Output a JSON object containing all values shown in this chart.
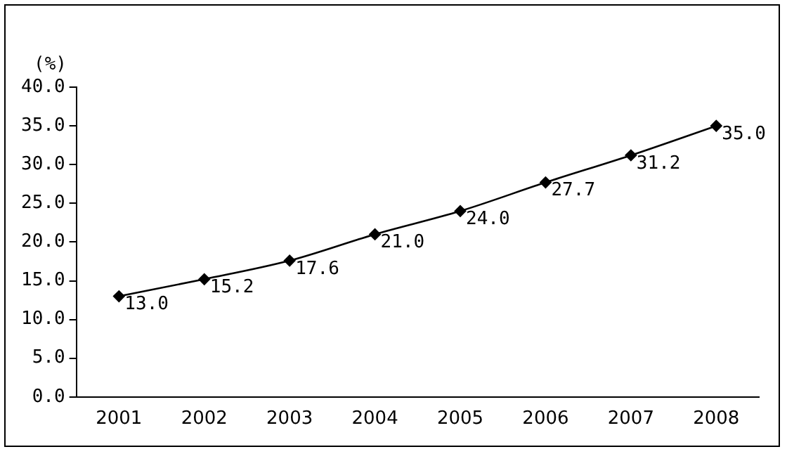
{
  "chart_data": {
    "type": "line",
    "ylabel": "(%)",
    "categories": [
      "2001",
      "2002",
      "2003",
      "2004",
      "2005",
      "2006",
      "2007",
      "2008"
    ],
    "series": [
      {
        "color": "#000000",
        "values": [
          13.0,
          15.2,
          17.6,
          21.0,
          24.0,
          27.7,
          31.2,
          35.0
        ],
        "value_labels": [
          "13.0",
          "15.2",
          "17.6",
          "21.0",
          "24.0",
          "27.7",
          "31.2",
          "35.0"
        ]
      }
    ],
    "ylim": [
      0,
      40
    ],
    "yticks": [
      {
        "value": 0,
        "label": "0.0"
      },
      {
        "value": 5,
        "label": "5.0"
      },
      {
        "value": 10,
        "label": "10.0"
      },
      {
        "value": 15,
        "label": "15.0"
      },
      {
        "value": 20,
        "label": "20.0"
      },
      {
        "value": 25,
        "label": "25.0"
      },
      {
        "value": 30,
        "label": "30.0"
      },
      {
        "value": 35,
        "label": "35.0"
      },
      {
        "value": 40,
        "label": "40.0"
      }
    ],
    "grid": false,
    "legend": false,
    "marker": "diamond",
    "line_style": "solid"
  }
}
